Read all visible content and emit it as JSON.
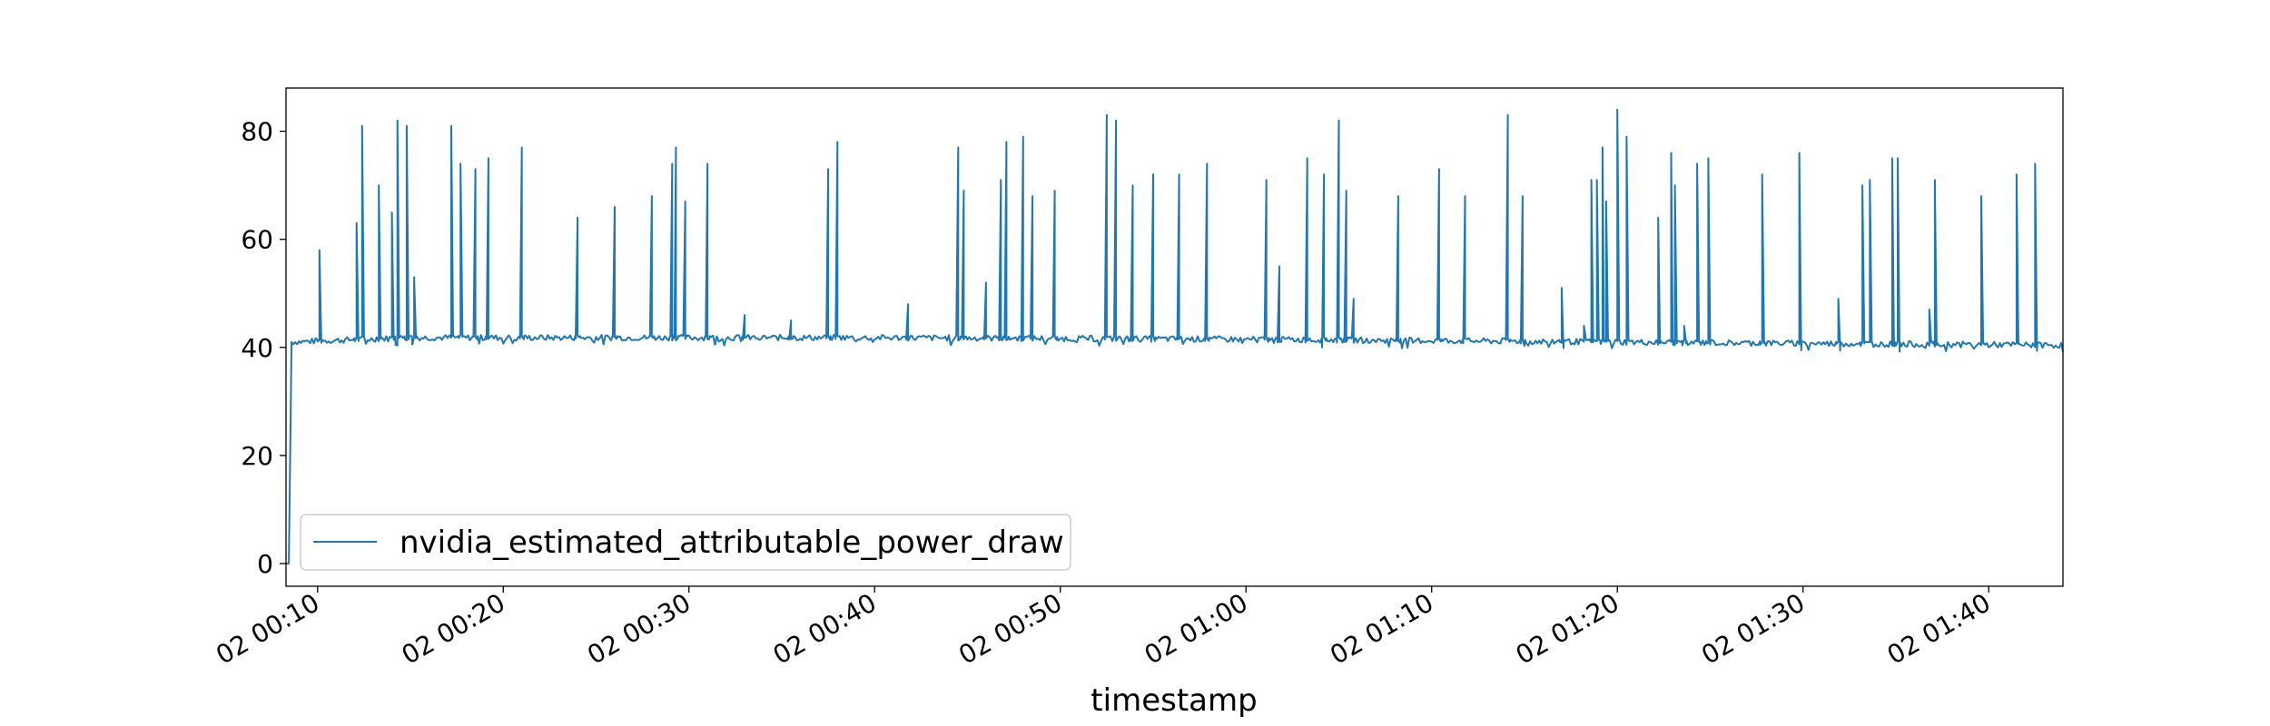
{
  "chart_data": {
    "type": "line",
    "title": "",
    "xlabel": "timestamp",
    "ylabel": "",
    "x_tick_labels": [
      "02 00:10",
      "02 00:20",
      "02 00:30",
      "02 00:40",
      "02 00:50",
      "02 01:00",
      "02 01:10",
      "02 01:20",
      "02 01:30",
      "02 01:40"
    ],
    "x_tick_minutes": [
      10,
      20,
      30,
      40,
      50,
      60,
      70,
      80,
      90,
      100
    ],
    "xlim_minutes": [
      8.3,
      104.0
    ],
    "y_ticks": [
      0,
      20,
      40,
      60,
      80
    ],
    "ylim": [
      -4.2,
      88
    ],
    "grid": false,
    "legend_position": "lower-left",
    "series_color": "#1f77b4",
    "series": [
      {
        "name": "nvidia_estimated_attributable_power_draw",
        "baseline": [
          [
            8.3,
            0.0
          ],
          [
            8.45,
            0.0
          ],
          [
            8.6,
            41.0
          ],
          [
            15,
            41.8
          ],
          [
            40,
            41.8
          ],
          [
            60,
            41.5
          ],
          [
            80,
            41.0
          ],
          [
            104,
            40.4
          ]
        ],
        "spikes": [
          [
            10.1,
            58
          ],
          [
            12.1,
            63
          ],
          [
            12.4,
            81
          ],
          [
            13.3,
            70
          ],
          [
            14.0,
            65
          ],
          [
            14.3,
            82
          ],
          [
            14.8,
            81
          ],
          [
            15.2,
            53
          ],
          [
            17.2,
            81
          ],
          [
            17.7,
            74
          ],
          [
            18.5,
            73
          ],
          [
            19.2,
            75
          ],
          [
            21.0,
            77
          ],
          [
            24.0,
            64
          ],
          [
            26.0,
            66
          ],
          [
            28.0,
            68
          ],
          [
            29.1,
            74
          ],
          [
            29.3,
            77
          ],
          [
            29.8,
            67
          ],
          [
            31.0,
            74
          ],
          [
            33.0,
            46
          ],
          [
            35.5,
            45
          ],
          [
            37.5,
            73
          ],
          [
            38.0,
            78
          ],
          [
            41.8,
            48
          ],
          [
            44.5,
            77
          ],
          [
            44.8,
            69
          ],
          [
            46.0,
            52
          ],
          [
            46.8,
            71
          ],
          [
            47.1,
            78
          ],
          [
            48.0,
            79
          ],
          [
            48.5,
            68
          ],
          [
            49.7,
            69
          ],
          [
            52.5,
            83
          ],
          [
            53.0,
            82
          ],
          [
            53.9,
            70
          ],
          [
            55.0,
            72
          ],
          [
            56.4,
            72
          ],
          [
            57.9,
            74
          ],
          [
            61.1,
            71
          ],
          [
            61.8,
            55
          ],
          [
            63.3,
            75
          ],
          [
            64.2,
            72
          ],
          [
            65.0,
            82
          ],
          [
            65.4,
            69
          ],
          [
            65.8,
            49
          ],
          [
            68.2,
            68
          ],
          [
            70.4,
            73
          ],
          [
            71.8,
            68
          ],
          [
            74.1,
            83
          ],
          [
            74.9,
            68
          ],
          [
            77.0,
            51
          ],
          [
            78.2,
            44
          ],
          [
            78.6,
            71
          ],
          [
            78.9,
            71
          ],
          [
            79.2,
            77
          ],
          [
            79.4,
            67
          ],
          [
            80.0,
            84
          ],
          [
            80.5,
            79
          ],
          [
            82.2,
            64
          ],
          [
            82.9,
            76
          ],
          [
            83.1,
            70
          ],
          [
            83.6,
            44
          ],
          [
            84.3,
            74
          ],
          [
            84.9,
            75
          ],
          [
            87.8,
            72
          ],
          [
            89.8,
            76
          ],
          [
            91.9,
            49
          ],
          [
            93.2,
            70
          ],
          [
            93.6,
            71
          ],
          [
            94.8,
            75
          ],
          [
            95.1,
            75
          ],
          [
            96.8,
            47
          ],
          [
            97.1,
            71
          ],
          [
            99.6,
            68
          ],
          [
            101.5,
            72
          ],
          [
            102.5,
            74
          ]
        ]
      }
    ]
  }
}
